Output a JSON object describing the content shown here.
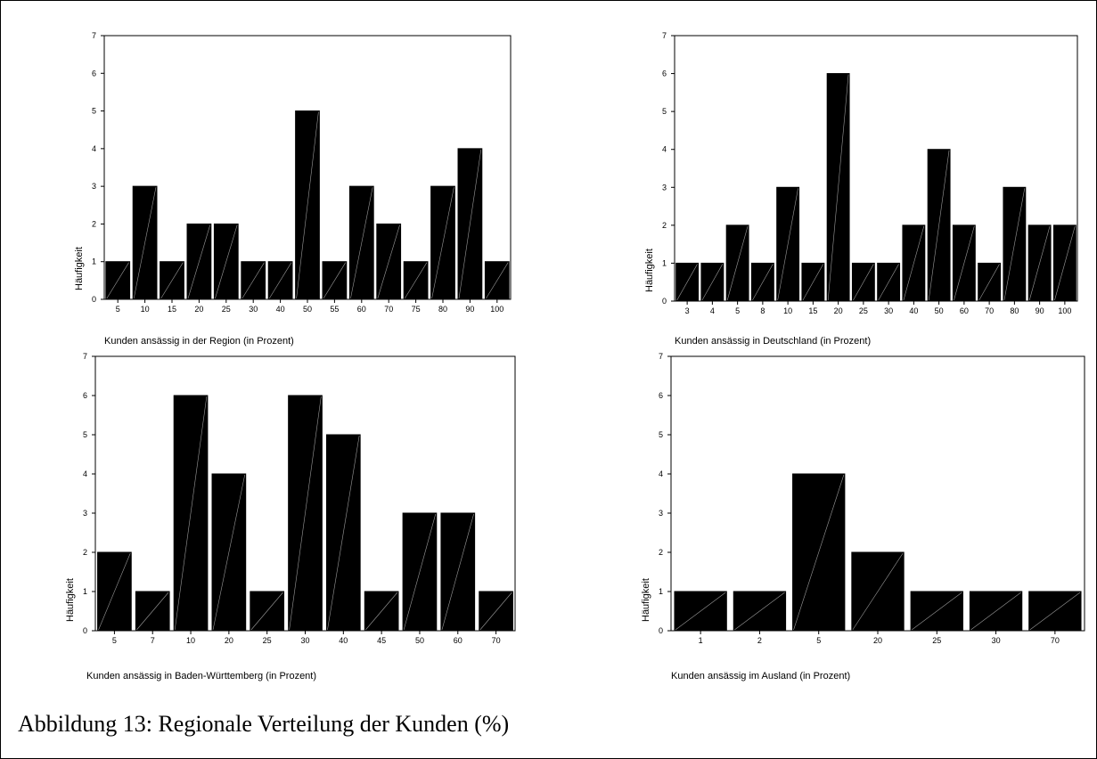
{
  "figure": {
    "caption": "Abbildung 13: Regionale Verteilung der Kunden (%)"
  },
  "chart_data": [
    {
      "type": "bar",
      "xlabel": "Kunden ansässig in der Region (in Prozent)",
      "ylabel": "Häufigkeit",
      "ylim": [
        0,
        7
      ],
      "yticks": [
        0,
        1,
        2,
        3,
        4,
        5,
        6,
        7
      ],
      "categories": [
        "5",
        "10",
        "15",
        "20",
        "25",
        "30",
        "40",
        "50",
        "55",
        "60",
        "70",
        "75",
        "80",
        "90",
        "100"
      ],
      "values": [
        1,
        3,
        1,
        2,
        2,
        1,
        1,
        5,
        1,
        3,
        2,
        1,
        3,
        4,
        1
      ],
      "bar_color": "#000000",
      "grid": false
    },
    {
      "type": "bar",
      "xlabel": "Kunden ansässig in Deutschland (in Prozent)",
      "ylabel": "Häufigkeit",
      "ylim": [
        0,
        7
      ],
      "yticks": [
        0,
        1,
        2,
        3,
        4,
        5,
        6,
        7
      ],
      "categories": [
        "3",
        "4",
        "5",
        "8",
        "10",
        "15",
        "20",
        "25",
        "30",
        "40",
        "50",
        "60",
        "70",
        "80",
        "90",
        "100"
      ],
      "values": [
        1,
        1,
        2,
        1,
        3,
        1,
        6,
        1,
        1,
        2,
        4,
        2,
        1,
        3,
        2,
        2
      ],
      "bar_color": "#000000",
      "grid": false
    },
    {
      "type": "bar",
      "xlabel": "Kunden ansässig in Baden-Württemberg (in Prozent)",
      "ylabel": "Häufigkeit",
      "ylim": [
        0,
        7
      ],
      "yticks": [
        0,
        1,
        2,
        3,
        4,
        5,
        6,
        7
      ],
      "categories": [
        "5",
        "7",
        "10",
        "20",
        "25",
        "30",
        "40",
        "45",
        "50",
        "60",
        "70"
      ],
      "values": [
        2,
        1,
        6,
        4,
        1,
        6,
        5,
        1,
        3,
        3,
        1
      ],
      "bar_color": "#000000",
      "grid": false
    },
    {
      "type": "bar",
      "xlabel": "Kunden ansässig im Ausland (in Prozent)",
      "ylabel": "Häufigkeit",
      "ylim": [
        0,
        7
      ],
      "yticks": [
        0,
        1,
        2,
        3,
        4,
        5,
        6,
        7
      ],
      "categories": [
        "1",
        "2",
        "5",
        "20",
        "25",
        "30",
        "70"
      ],
      "values": [
        1,
        1,
        4,
        2,
        1,
        1,
        1
      ],
      "bar_color": "#000000",
      "grid": false
    }
  ]
}
